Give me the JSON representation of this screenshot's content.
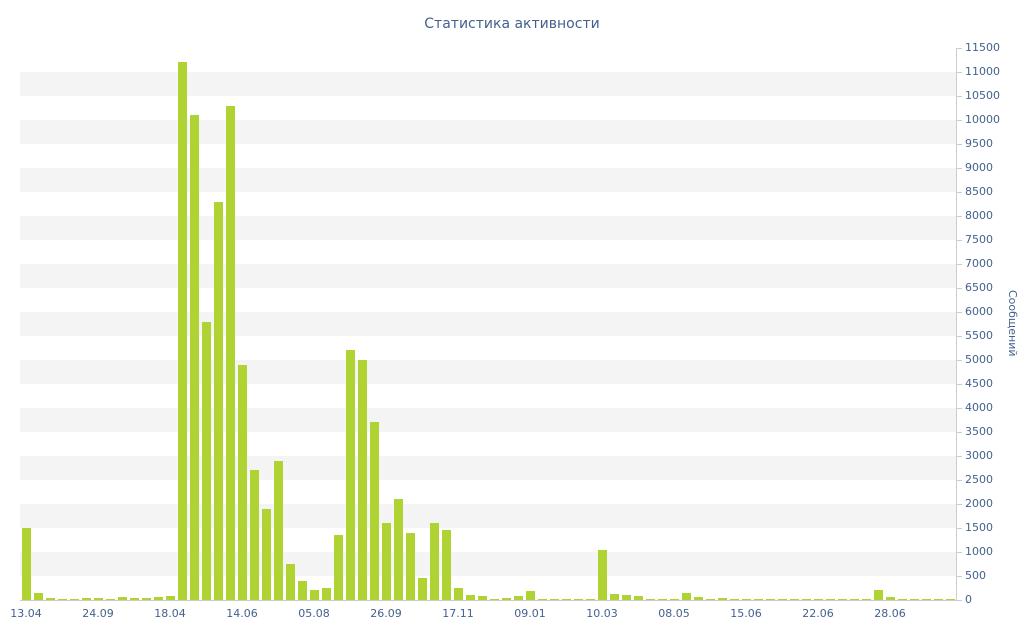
{
  "colors": {
    "bar": "#aed333",
    "axis_text": "#44618e",
    "axis_line": "#cccccc",
    "stripe": "#f4f4f4",
    "background": "#ffffff"
  },
  "chart_data": {
    "type": "bar",
    "title": "Статистика активности",
    "ylabel": "Сообщений",
    "xlabel": "",
    "ylim": [
      0,
      11500
    ],
    "ytick_step": 500,
    "grid": "horizontal-stripes",
    "legend": "none",
    "y_tick_labels": [
      "11500",
      "11000",
      "10500",
      "10000",
      "9500",
      "9000",
      "8500",
      "8000",
      "7500",
      "7000",
      "6500",
      "6000",
      "5500",
      "5000",
      "4500",
      "4000",
      "3500",
      "3000",
      "2500",
      "2000",
      "1500",
      "1000",
      "500",
      "0"
    ],
    "x_tick_every": 6,
    "x_tick_labels": [
      "13.04",
      "24.09",
      "18.04",
      "14.06",
      "05.08",
      "26.09",
      "17.11",
      "09.01",
      "10.03",
      "08.05",
      "15.06",
      "22.06",
      "28.06"
    ],
    "values": [
      1500,
      150,
      40,
      30,
      20,
      50,
      50,
      30,
      60,
      40,
      50,
      60,
      90,
      11200,
      10100,
      5800,
      8300,
      10300,
      4900,
      2700,
      1900,
      2900,
      750,
      400,
      200,
      250,
      1350,
      5200,
      5000,
      3700,
      1600,
      2100,
      1400,
      450,
      1600,
      1450,
      250,
      100,
      80,
      30,
      40,
      80,
      180,
      20,
      10,
      10,
      10,
      20,
      1050,
      120,
      100,
      80,
      20,
      20,
      30,
      150,
      60,
      20,
      50,
      20,
      30,
      10,
      10,
      10,
      20,
      30,
      30,
      10,
      10,
      20,
      10,
      200,
      60,
      20,
      10,
      20,
      10,
      10
    ]
  }
}
